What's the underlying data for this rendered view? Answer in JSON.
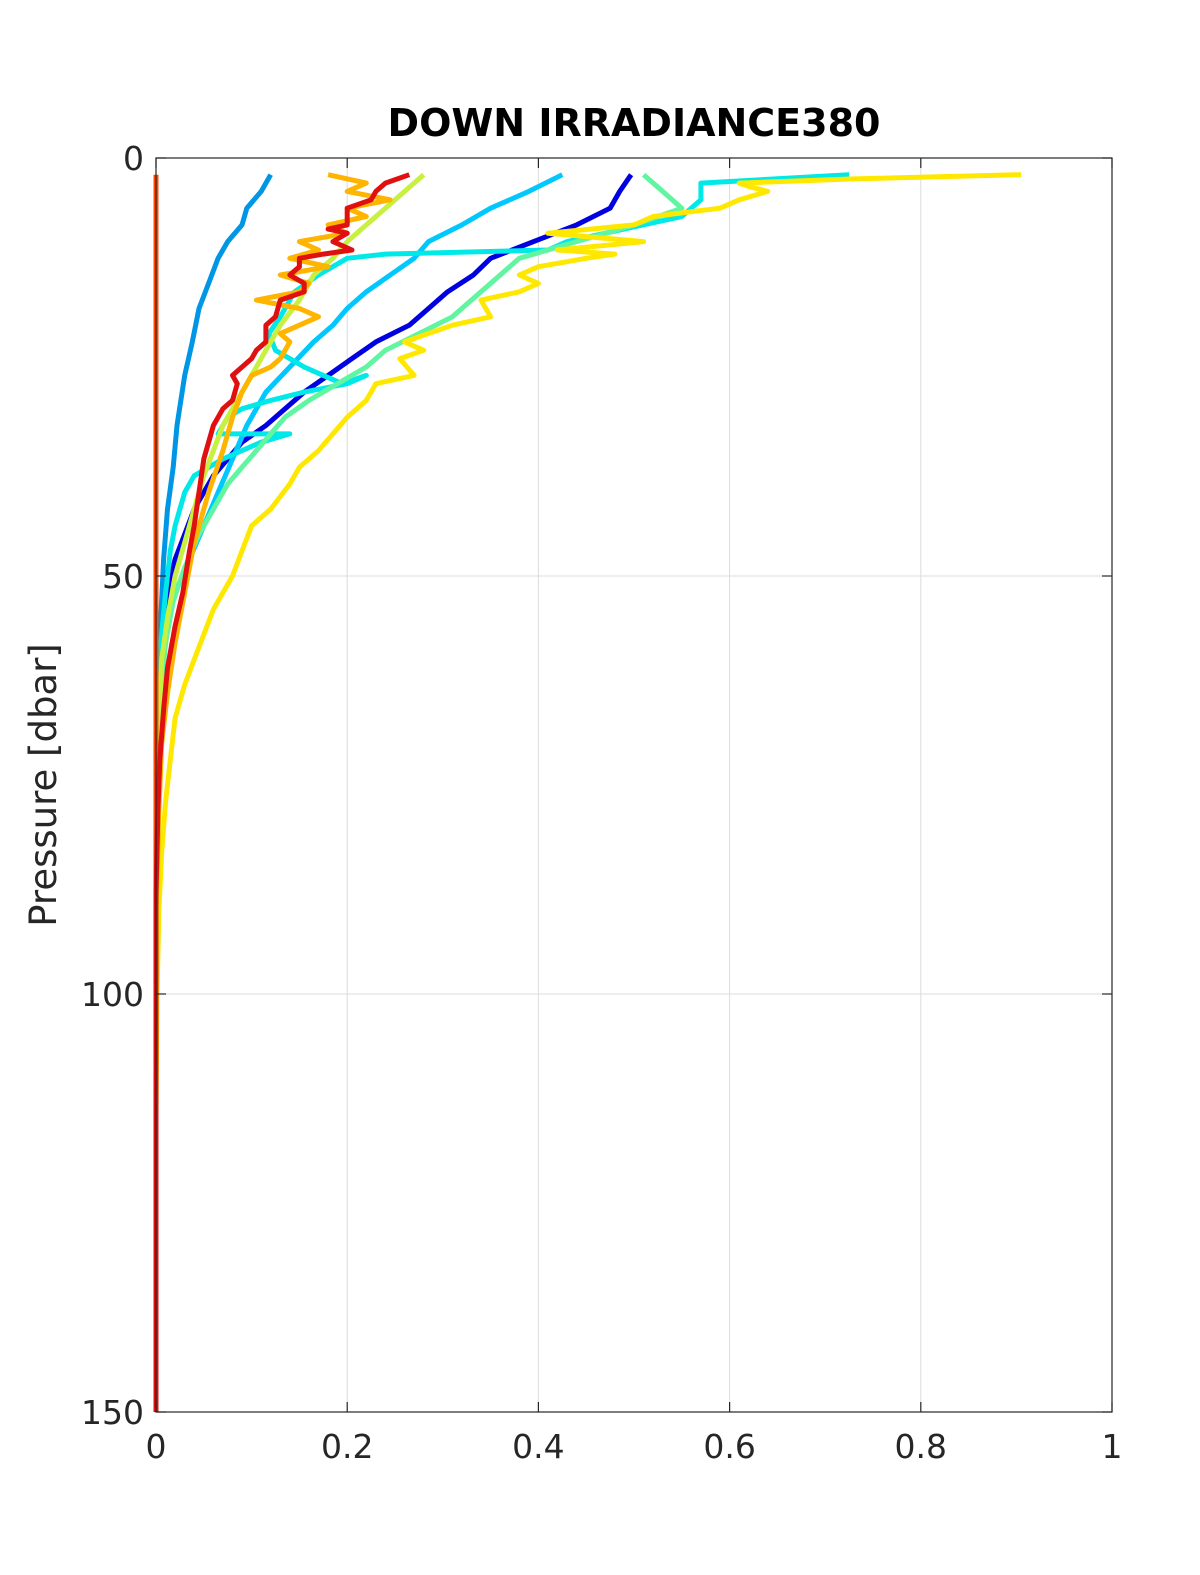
{
  "chart_data": {
    "type": "line",
    "title": "DOWN IRRADIANCE380",
    "xlabel": "",
    "ylabel": "Pressure [dbar]",
    "xlim": [
      0,
      1
    ],
    "ylim": [
      0,
      150
    ],
    "y_reversed": true,
    "grid": true,
    "legend": "none",
    "x_ticks": [
      "0",
      "0.2",
      "0.4",
      "0.6",
      "0.8",
      "1"
    ],
    "y_ticks": [
      "0",
      "50",
      "100",
      "150"
    ],
    "series": [
      {
        "color": "#0096e6",
        "points": [
          [
            0.12,
            2
          ],
          [
            0.11,
            4
          ],
          [
            0.095,
            6
          ],
          [
            0.09,
            8
          ],
          [
            0.075,
            10
          ],
          [
            0.065,
            12
          ],
          [
            0.055,
            15
          ],
          [
            0.045,
            18
          ],
          [
            0.038,
            22
          ],
          [
            0.03,
            26
          ],
          [
            0.022,
            32
          ],
          [
            0.018,
            37
          ],
          [
            0.012,
            42
          ],
          [
            0.008,
            48
          ],
          [
            0.005,
            55
          ],
          [
            0.003,
            62
          ],
          [
            0.002,
            70
          ],
          [
            0.001,
            80
          ],
          [
            0.0,
            100
          ],
          [
            0.0,
            150
          ]
        ]
      },
      {
        "color": "#0000e0",
        "points": [
          [
            0.497,
            2
          ],
          [
            0.485,
            4
          ],
          [
            0.475,
            6
          ],
          [
            0.44,
            8
          ],
          [
            0.395,
            10
          ],
          [
            0.35,
            12
          ],
          [
            0.332,
            14
          ],
          [
            0.305,
            16
          ],
          [
            0.285,
            18
          ],
          [
            0.265,
            20
          ],
          [
            0.23,
            22
          ],
          [
            0.205,
            24
          ],
          [
            0.18,
            26
          ],
          [
            0.155,
            28
          ],
          [
            0.135,
            30
          ],
          [
            0.115,
            32
          ],
          [
            0.09,
            34
          ],
          [
            0.075,
            36
          ],
          [
            0.06,
            38
          ],
          [
            0.05,
            40
          ],
          [
            0.04,
            42
          ],
          [
            0.03,
            45
          ],
          [
            0.02,
            48
          ],
          [
            0.012,
            52
          ],
          [
            0.007,
            56
          ],
          [
            0.004,
            60
          ],
          [
            0.002,
            70
          ],
          [
            0.0,
            85
          ],
          [
            0.0,
            150
          ]
        ]
      },
      {
        "color": "#00c8ff",
        "points": [
          [
            0.425,
            2
          ],
          [
            0.39,
            4
          ],
          [
            0.35,
            6
          ],
          [
            0.32,
            8
          ],
          [
            0.285,
            10
          ],
          [
            0.27,
            12
          ],
          [
            0.245,
            14
          ],
          [
            0.22,
            16
          ],
          [
            0.2,
            18
          ],
          [
            0.185,
            20
          ],
          [
            0.165,
            22
          ],
          [
            0.14,
            25
          ],
          [
            0.115,
            28
          ],
          [
            0.095,
            32
          ],
          [
            0.08,
            36
          ],
          [
            0.065,
            40
          ],
          [
            0.05,
            44
          ],
          [
            0.035,
            48
          ],
          [
            0.02,
            52
          ],
          [
            0.01,
            56
          ],
          [
            0.005,
            62
          ],
          [
            0.002,
            70
          ],
          [
            0.0,
            85
          ],
          [
            0.0,
            150
          ]
        ]
      },
      {
        "color": "#00e8e8",
        "points": [
          [
            0.725,
            2
          ],
          [
            0.57,
            3
          ],
          [
            0.57,
            5
          ],
          [
            0.55,
            7
          ],
          [
            0.47,
            9
          ],
          [
            0.43,
            10
          ],
          [
            0.41,
            11
          ],
          [
            0.24,
            11.5
          ],
          [
            0.2,
            12
          ],
          [
            0.17,
            14
          ],
          [
            0.145,
            16
          ],
          [
            0.13,
            19
          ],
          [
            0.118,
            21
          ],
          [
            0.125,
            23
          ],
          [
            0.155,
            25
          ],
          [
            0.175,
            26
          ],
          [
            0.195,
            27
          ],
          [
            0.22,
            26
          ],
          [
            0.2,
            27
          ],
          [
            0.155,
            28
          ],
          [
            0.12,
            29
          ],
          [
            0.09,
            30
          ],
          [
            0.075,
            31
          ],
          [
            0.065,
            33
          ],
          [
            0.1,
            33
          ],
          [
            0.14,
            33
          ],
          [
            0.11,
            34
          ],
          [
            0.09,
            35
          ],
          [
            0.07,
            36
          ],
          [
            0.055,
            37
          ],
          [
            0.04,
            38
          ],
          [
            0.03,
            40
          ],
          [
            0.025,
            42
          ],
          [
            0.02,
            44
          ],
          [
            0.015,
            47
          ],
          [
            0.01,
            52
          ],
          [
            0.005,
            58
          ],
          [
            0.002,
            66
          ],
          [
            0.0,
            80
          ],
          [
            0.0,
            150
          ]
        ]
      },
      {
        "color": "#60f5a0",
        "points": [
          [
            0.51,
            2
          ],
          [
            0.53,
            4
          ],
          [
            0.55,
            6
          ],
          [
            0.5,
            8
          ],
          [
            0.44,
            10
          ],
          [
            0.38,
            12
          ],
          [
            0.36,
            14
          ],
          [
            0.34,
            16
          ],
          [
            0.31,
            19
          ],
          [
            0.275,
            21
          ],
          [
            0.24,
            23
          ],
          [
            0.22,
            25
          ],
          [
            0.19,
            27
          ],
          [
            0.16,
            29
          ],
          [
            0.135,
            31
          ],
          [
            0.12,
            33
          ],
          [
            0.105,
            35
          ],
          [
            0.09,
            37
          ],
          [
            0.075,
            39
          ],
          [
            0.06,
            42
          ],
          [
            0.045,
            45
          ],
          [
            0.03,
            49
          ],
          [
            0.018,
            53
          ],
          [
            0.01,
            58
          ],
          [
            0.005,
            64
          ],
          [
            0.002,
            72
          ],
          [
            0.0,
            85
          ],
          [
            0.0,
            150
          ]
        ]
      },
      {
        "color": "#c8f040",
        "points": [
          [
            0.28,
            2
          ],
          [
            0.26,
            4
          ],
          [
            0.24,
            6
          ],
          [
            0.22,
            8
          ],
          [
            0.2,
            10
          ],
          [
            0.185,
            12
          ],
          [
            0.165,
            14
          ],
          [
            0.15,
            17
          ],
          [
            0.13,
            20
          ],
          [
            0.115,
            23
          ],
          [
            0.1,
            26
          ],
          [
            0.085,
            29
          ],
          [
            0.07,
            32
          ],
          [
            0.06,
            35
          ],
          [
            0.05,
            38
          ],
          [
            0.04,
            42
          ],
          [
            0.03,
            46
          ],
          [
            0.02,
            50
          ],
          [
            0.012,
            55
          ],
          [
            0.006,
            60
          ],
          [
            0.003,
            68
          ],
          [
            0.0,
            80
          ],
          [
            0.0,
            150
          ]
        ]
      },
      {
        "color": "#ffe800",
        "points": [
          [
            0.905,
            2
          ],
          [
            0.73,
            2.5
          ],
          [
            0.61,
            3
          ],
          [
            0.62,
            3.4
          ],
          [
            0.64,
            4
          ],
          [
            0.61,
            5
          ],
          [
            0.59,
            6
          ],
          [
            0.52,
            7
          ],
          [
            0.5,
            8
          ],
          [
            0.41,
            9
          ],
          [
            0.51,
            10
          ],
          [
            0.42,
            11
          ],
          [
            0.48,
            11.5
          ],
          [
            0.45,
            12
          ],
          [
            0.4,
            13
          ],
          [
            0.38,
            14
          ],
          [
            0.4,
            15
          ],
          [
            0.38,
            16
          ],
          [
            0.34,
            17
          ],
          [
            0.35,
            19
          ],
          [
            0.31,
            20
          ],
          [
            0.26,
            22
          ],
          [
            0.28,
            23
          ],
          [
            0.255,
            24
          ],
          [
            0.27,
            26
          ],
          [
            0.23,
            27
          ],
          [
            0.22,
            29
          ],
          [
            0.2,
            31
          ],
          [
            0.185,
            33
          ],
          [
            0.17,
            35
          ],
          [
            0.15,
            37
          ],
          [
            0.14,
            39
          ],
          [
            0.12,
            42
          ],
          [
            0.1,
            44
          ],
          [
            0.09,
            47
          ],
          [
            0.08,
            50
          ],
          [
            0.07,
            52
          ],
          [
            0.06,
            54
          ],
          [
            0.05,
            57
          ],
          [
            0.04,
            60
          ],
          [
            0.03,
            63
          ],
          [
            0.02,
            67
          ],
          [
            0.015,
            72
          ],
          [
            0.01,
            77
          ],
          [
            0.006,
            83
          ],
          [
            0.003,
            90
          ],
          [
            0.001,
            100
          ],
          [
            0.0,
            115
          ],
          [
            0.0,
            150
          ]
        ]
      },
      {
        "color": "#ffb400",
        "points": [
          [
            0.18,
            2
          ],
          [
            0.22,
            3
          ],
          [
            0.2,
            4
          ],
          [
            0.245,
            5
          ],
          [
            0.2,
            6
          ],
          [
            0.22,
            7
          ],
          [
            0.18,
            8
          ],
          [
            0.2,
            9
          ],
          [
            0.15,
            10
          ],
          [
            0.17,
            11
          ],
          [
            0.14,
            12
          ],
          [
            0.18,
            13
          ],
          [
            0.13,
            14
          ],
          [
            0.16,
            15
          ],
          [
            0.15,
            16
          ],
          [
            0.105,
            17
          ],
          [
            0.15,
            18
          ],
          [
            0.17,
            19
          ],
          [
            0.15,
            20
          ],
          [
            0.13,
            21
          ],
          [
            0.14,
            22
          ],
          [
            0.135,
            23
          ],
          [
            0.13,
            24
          ],
          [
            0.12,
            25
          ],
          [
            0.1,
            26
          ],
          [
            0.09,
            28
          ],
          [
            0.08,
            31
          ],
          [
            0.07,
            35
          ],
          [
            0.055,
            40
          ],
          [
            0.04,
            46
          ],
          [
            0.03,
            52
          ],
          [
            0.02,
            58
          ],
          [
            0.012,
            64
          ],
          [
            0.006,
            70
          ],
          [
            0.003,
            78
          ],
          [
            0.0,
            90
          ],
          [
            0.0,
            150
          ]
        ]
      },
      {
        "color": "#ff4a00",
        "points": [
          [
            0.0,
            2
          ],
          [
            0.0,
            150
          ]
        ]
      },
      {
        "color": "#e01010",
        "points": [
          [
            0.265,
            2
          ],
          [
            0.24,
            3
          ],
          [
            0.23,
            4
          ],
          [
            0.225,
            5
          ],
          [
            0.2,
            6
          ],
          [
            0.2,
            7
          ],
          [
            0.2,
            8
          ],
          [
            0.18,
            8.5
          ],
          [
            0.2,
            9
          ],
          [
            0.185,
            10
          ],
          [
            0.205,
            11
          ],
          [
            0.175,
            11.5
          ],
          [
            0.15,
            12
          ],
          [
            0.15,
            13
          ],
          [
            0.14,
            14
          ],
          [
            0.155,
            15
          ],
          [
            0.155,
            16
          ],
          [
            0.13,
            17
          ],
          [
            0.125,
            19
          ],
          [
            0.115,
            20
          ],
          [
            0.115,
            22
          ],
          [
            0.105,
            23
          ],
          [
            0.1,
            24
          ],
          [
            0.08,
            26
          ],
          [
            0.085,
            27
          ],
          [
            0.08,
            29
          ],
          [
            0.07,
            30
          ],
          [
            0.06,
            32
          ],
          [
            0.05,
            36
          ],
          [
            0.045,
            40
          ],
          [
            0.04,
            44
          ],
          [
            0.035,
            47
          ],
          [
            0.028,
            52
          ],
          [
            0.02,
            56
          ],
          [
            0.012,
            61
          ],
          [
            0.008,
            66
          ],
          [
            0.004,
            72
          ],
          [
            0.002,
            78
          ],
          [
            0.0,
            88
          ],
          [
            0.0,
            150
          ]
        ]
      }
    ]
  }
}
